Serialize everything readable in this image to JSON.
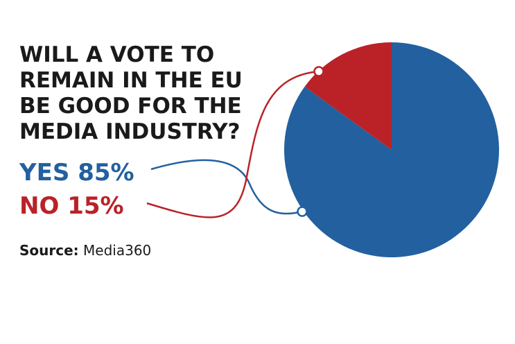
{
  "chart_data": {
    "type": "pie",
    "title_lines": [
      "WILL A VOTE TO",
      "REMAIN IN THE EU",
      "BE GOOD FOR THE",
      "MEDIA INDUSTRY?"
    ],
    "slices": [
      {
        "label": "YES",
        "value": 85,
        "display": "85%",
        "color": "#23609f"
      },
      {
        "label": "NO",
        "value": 15,
        "display": "15%",
        "color": "#ba2228"
      }
    ],
    "source_label": "Source:",
    "source_value": "Media360"
  }
}
